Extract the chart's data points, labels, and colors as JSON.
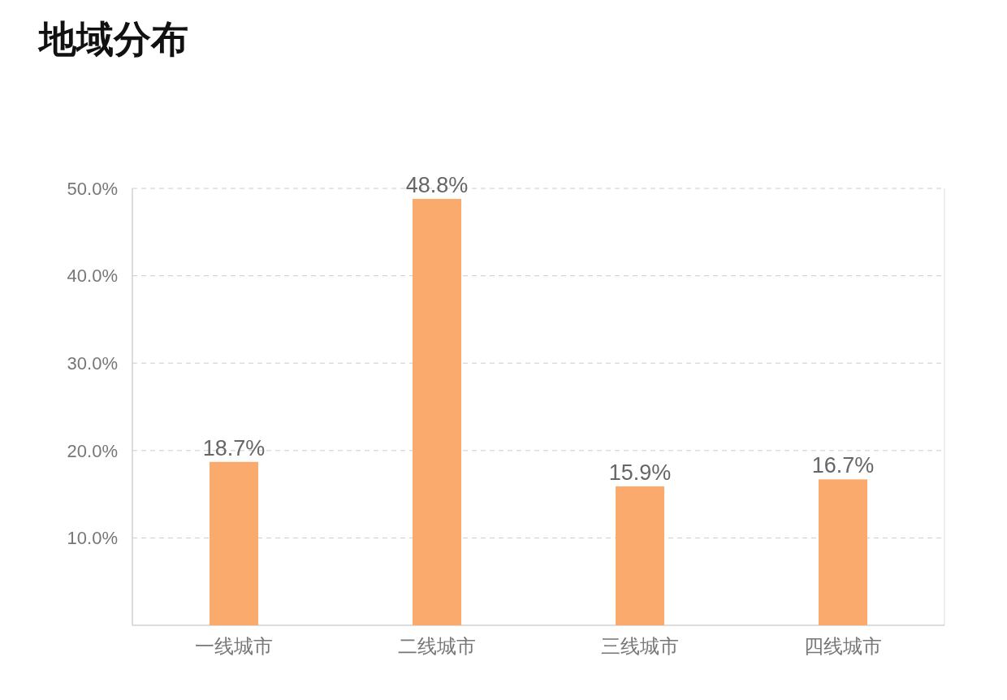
{
  "chart_data": {
    "type": "bar",
    "title": "地域分布",
    "categories": [
      "一线城市",
      "二线城市",
      "三线城市",
      "四线城市"
    ],
    "values": [
      18.7,
      48.8,
      15.9,
      16.7
    ],
    "value_labels": [
      "18.7%",
      "48.8%",
      "15.9%",
      "16.7%"
    ],
    "color": "#f9aa6c",
    "ylim": [
      0,
      50
    ],
    "yticks": [
      {
        "value": 10,
        "label": "10.0%"
      },
      {
        "value": 20,
        "label": "20.0%"
      },
      {
        "value": 30,
        "label": "30.0%"
      },
      {
        "value": 40,
        "label": "40.0%"
      },
      {
        "value": 50,
        "label": "50.0%"
      }
    ],
    "grid": "y"
  }
}
